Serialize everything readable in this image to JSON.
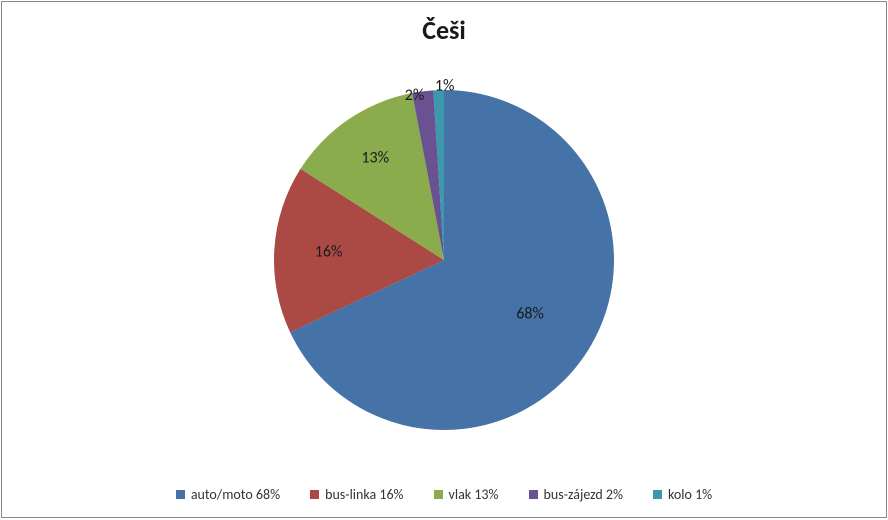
{
  "chart": {
    "type": "pie",
    "title": "Češi",
    "title_fontsize": 26,
    "title_fontweight": "bold",
    "title_color": "#1a1a1a",
    "background_color": "#ffffff",
    "border_color": "#888888",
    "pie_diameter": 340,
    "start_angle_deg": -90,
    "direction": "clockwise",
    "label_fontsize": 16,
    "label_color": "#1a1a1a",
    "legend_fontsize": 14,
    "legend_color": "#333333",
    "slices": [
      {
        "name": "auto/moto",
        "value": 68,
        "color": "#4573a7",
        "label": "68%",
        "legend_label": "auto/moto 68%",
        "label_r": 0.6,
        "label_angle_offset": 0
      },
      {
        "name": "bus-linka",
        "value": 16,
        "color": "#ab4a44",
        "label": "16%",
        "legend_label": "bus-linka 16%",
        "label_r": 0.68,
        "label_angle_offset": 0
      },
      {
        "name": "vlak",
        "value": 13,
        "color": "#8aac4c",
        "label": "13%",
        "legend_label": "vlak 13%",
        "label_r": 0.72,
        "label_angle_offset": 0
      },
      {
        "name": "bus-zájezd",
        "value": 2,
        "color": "#6a5291",
        "label": "2%",
        "legend_label": "bus-zájezd 2%",
        "label_r": 0.98,
        "label_angle_offset": -3
      },
      {
        "name": "kolo",
        "value": 1,
        "color": "#3c98af",
        "label": "1%",
        "legend_label": "kolo 1%",
        "label_r": 1.02,
        "label_angle_offset": 2
      }
    ]
  }
}
